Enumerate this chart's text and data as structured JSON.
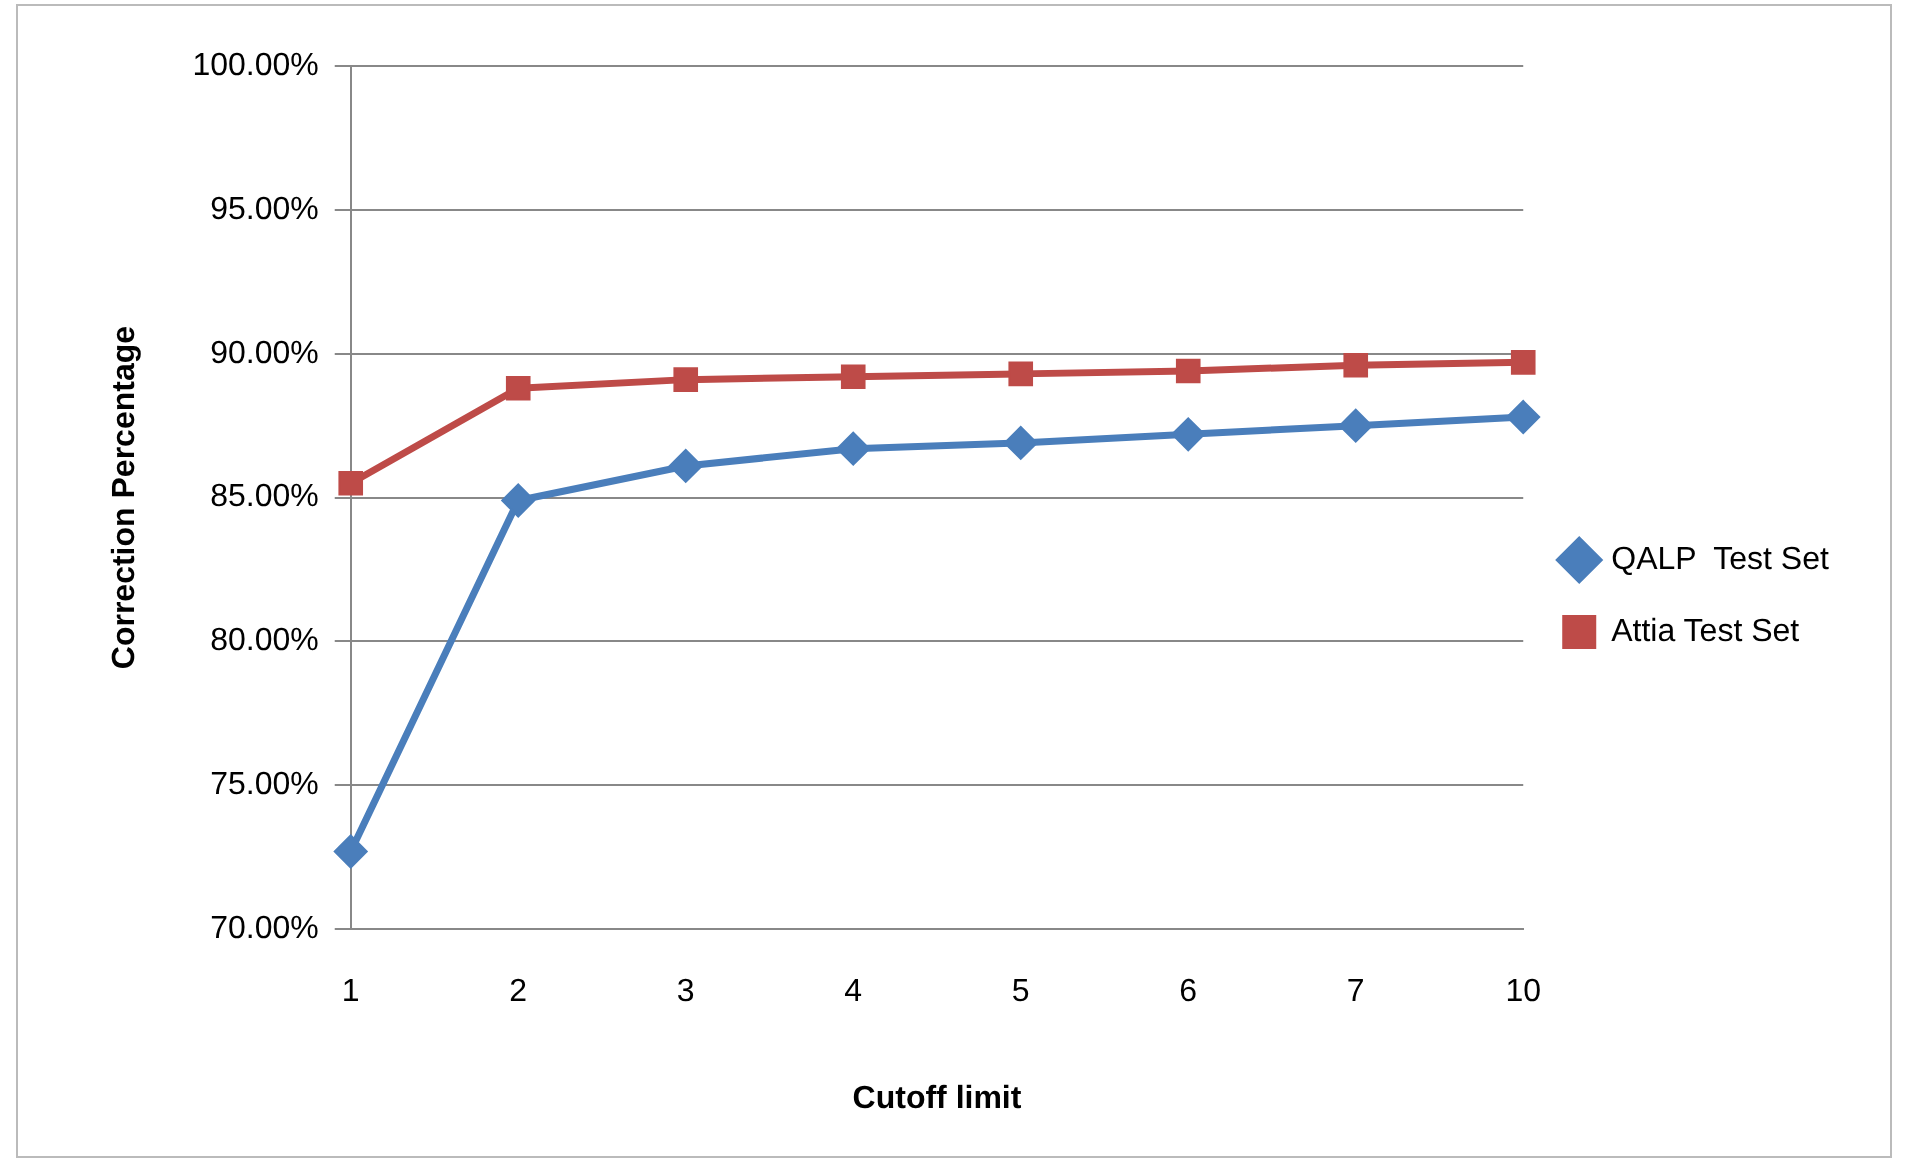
{
  "chart_data": {
    "type": "line",
    "xlabel": "Cutoff limit",
    "ylabel": "Correction Percentage",
    "categories": [
      "1",
      "2",
      "3",
      "4",
      "5",
      "6",
      "7",
      "10"
    ],
    "series": [
      {
        "name": "QALP  Test Set",
        "color": "#4a7ebb",
        "marker": "diamond",
        "values": [
          72.7,
          84.9,
          86.1,
          86.7,
          86.9,
          87.2,
          87.5,
          87.8
        ]
      },
      {
        "name": "Attia Test Set",
        "color": "#be4b48",
        "marker": "square",
        "values": [
          85.5,
          88.8,
          89.1,
          89.2,
          89.3,
          89.4,
          89.6,
          89.7
        ]
      }
    ],
    "ylim": [
      70,
      100
    ],
    "yticks": [
      {
        "value": 70,
        "label": "70.00%"
      },
      {
        "value": 75,
        "label": "75.00%"
      },
      {
        "value": 80,
        "label": "80.00%"
      },
      {
        "value": 85,
        "label": "85.00%"
      },
      {
        "value": 90,
        "label": "90.00%"
      },
      {
        "value": 95,
        "label": "95.00%"
      },
      {
        "value": 100,
        "label": "100.00%"
      }
    ],
    "grid": "y",
    "legend": "right"
  }
}
